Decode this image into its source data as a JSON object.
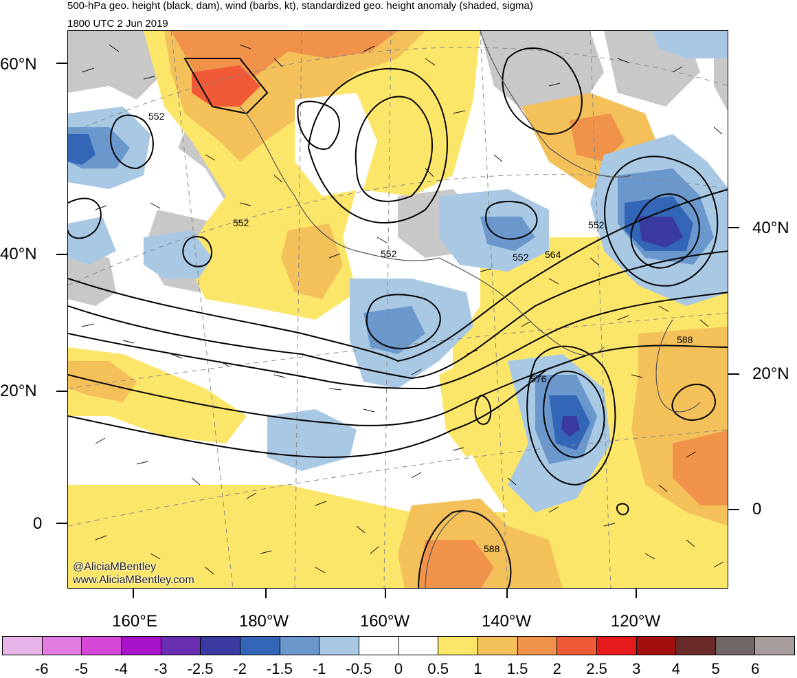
{
  "header": {
    "title": "500-hPa geo. height (black, dam), wind (barbs, kt), standardized geo. height anomaly (shaded, sigma)",
    "subtitle": "1800 UTC 2 Jun 2019"
  },
  "credit": {
    "handle": "@AliciaMBentley",
    "website": "www.AliciaMBentley.com"
  },
  "axes": {
    "left_lat_labels": [
      "60°N",
      "40°N",
      "20°N",
      "0"
    ],
    "right_lat_labels": [
      "40°N",
      "20°N",
      "0"
    ],
    "lon_labels": [
      "160°E",
      "180°W",
      "160°W",
      "140°W",
      "120°W"
    ]
  },
  "contour_labels": [
    "552",
    "552",
    "552",
    "552",
    "552",
    "564",
    "576",
    "588",
    "588"
  ],
  "colorbar": {
    "labels": [
      "-6",
      "-5",
      "-4",
      "-3",
      "-2.5",
      "-2",
      "-1.5",
      "-1",
      "-0.5",
      "0",
      "0.5",
      "1",
      "1.5",
      "2",
      "2.5",
      "3",
      "4",
      "5",
      "6"
    ],
    "colors": [
      "#e8b5e8",
      "#e27be2",
      "#d548d8",
      "#a812c8",
      "#6a2eb0",
      "#3a3aa0",
      "#3466b8",
      "#6a98cc",
      "#a8c8e4",
      "#ffffff",
      "#ffffff",
      "#fbe66a",
      "#f4c05a",
      "#f0924a",
      "#f05a36",
      "#e61a1a",
      "#a30f0f",
      "#6b2a2a",
      "#706666",
      "#a89d9d"
    ]
  },
  "colors": {
    "neg_light": "#a8c8e4",
    "neg_mid": "#6a98cc",
    "neg_strong": "#3466b8",
    "neg_deep": "#3a3aa0",
    "pos_light": "#fbe66a",
    "pos_mid": "#f4c05a",
    "pos_strong": "#f0924a",
    "pos_hot": "#f05a36",
    "land_mask": "#c8c8c8"
  }
}
